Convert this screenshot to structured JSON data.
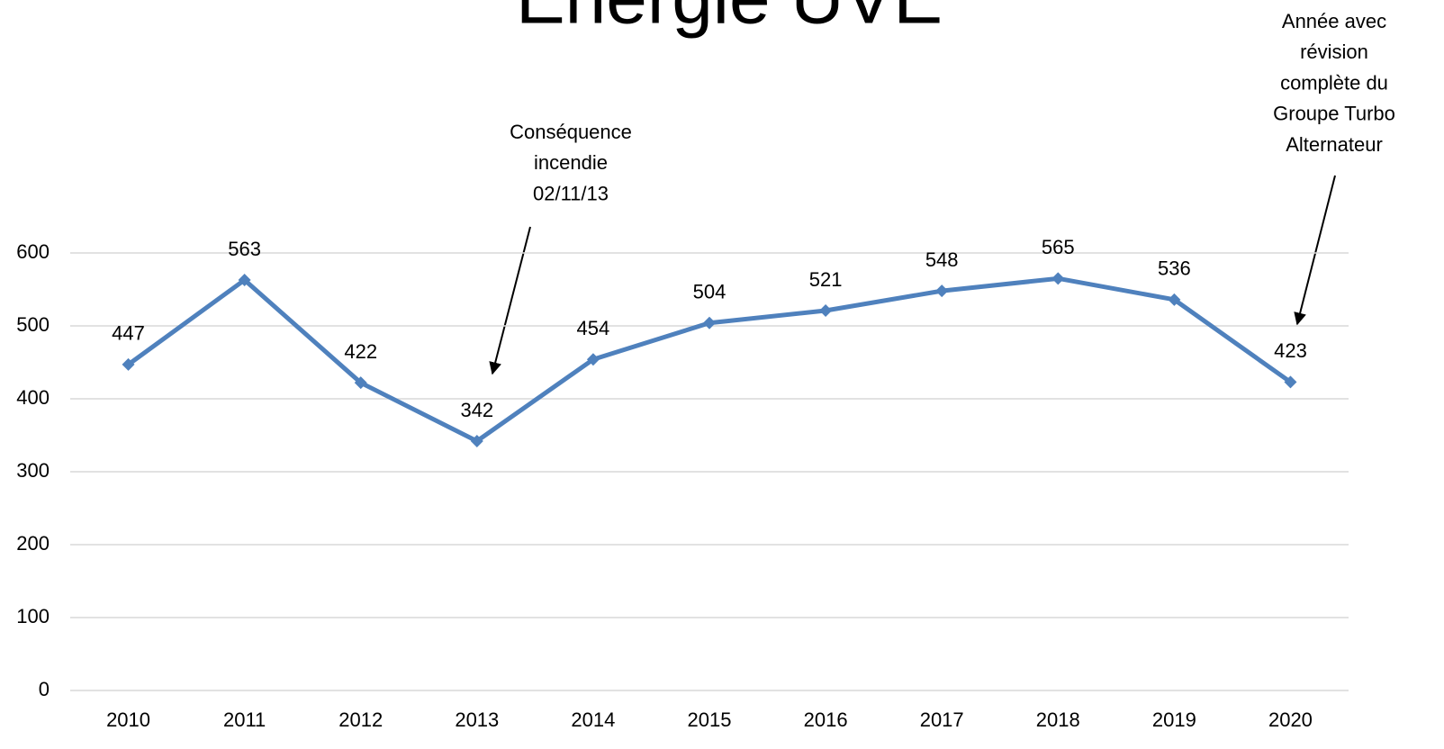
{
  "chart_data": {
    "type": "line",
    "title": "Energie UVE",
    "categories": [
      "2010",
      "2011",
      "2012",
      "2013",
      "2014",
      "2015",
      "2016",
      "2017",
      "2018",
      "2019",
      "2020"
    ],
    "series": [
      {
        "color": "#4f81bd",
        "values": [
          447,
          563,
          422,
          342,
          454,
          504,
          521,
          548,
          565,
          536,
          423
        ]
      }
    ],
    "ylim": [
      0,
      600
    ],
    "yticks": [
      0,
      100,
      200,
      300,
      400,
      500,
      600
    ],
    "grid": true,
    "annotations": [
      {
        "lines": [
          "Conséquence",
          "incendie",
          "02/11/13"
        ]
      },
      {
        "lines": [
          "Année avec",
          "révision",
          "complète du",
          "Groupe Turbo",
          "Alternateur"
        ]
      }
    ]
  }
}
